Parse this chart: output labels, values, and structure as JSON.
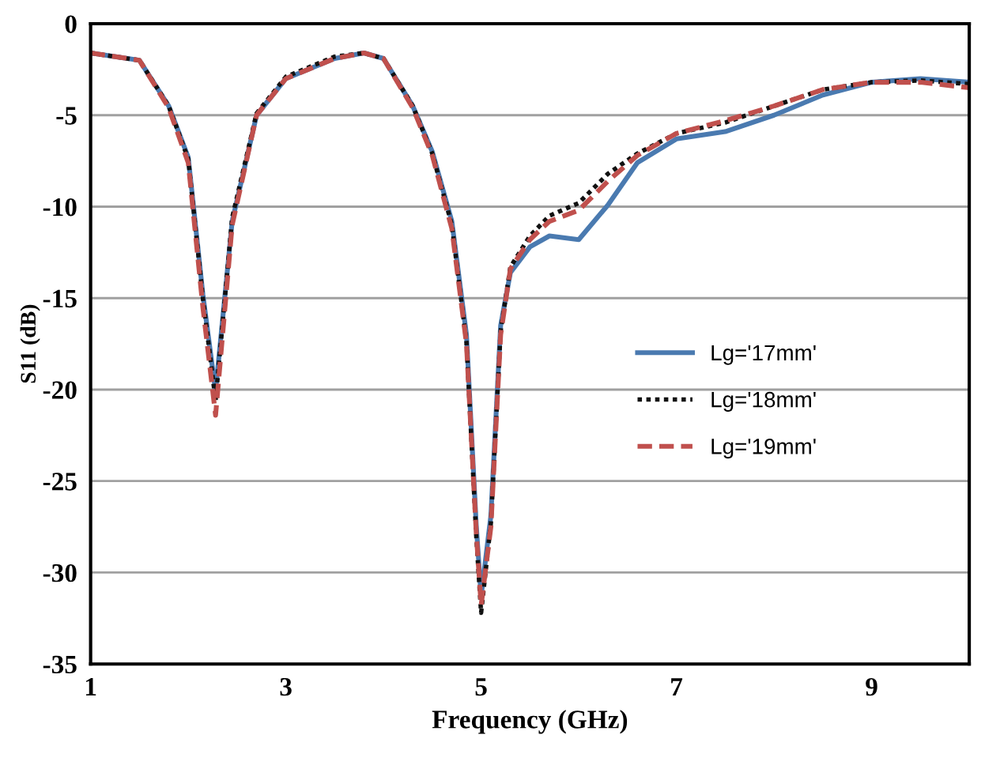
{
  "chart_data": {
    "type": "line",
    "xlabel": "Frequency (GHz)",
    "ylabel": "S11 (dB)",
    "x": [
      1,
      1.5,
      1.8,
      2.0,
      2.15,
      2.28,
      2.45,
      2.7,
      3,
      3.5,
      3.8,
      4.0,
      4.3,
      4.5,
      4.7,
      4.85,
      4.95,
      5.0,
      5.1,
      5.2,
      5.3,
      5.5,
      5.7,
      6.0,
      6.3,
      6.6,
      7,
      7.5,
      8,
      8.5,
      9,
      9.5,
      10
    ],
    "series": [
      {
        "name": "Lg='17mm'",
        "color": "#4a7ab0",
        "line_style": "solid",
        "values": [
          -1.6,
          -2.0,
          -4.5,
          -7.3,
          -14.8,
          -20.1,
          -10.8,
          -5.0,
          -3.0,
          -1.9,
          -1.6,
          -1.9,
          -4.5,
          -7.0,
          -10.8,
          -17.0,
          -27.4,
          -31.3,
          -26.9,
          -16.5,
          -13.6,
          -12.2,
          -11.6,
          -11.8,
          -9.9,
          -7.6,
          -6.3,
          -5.9,
          -5.0,
          -3.9,
          -3.2,
          -3.0,
          -3.2
        ]
      },
      {
        "name": "Lg='18mm'",
        "color": "#111111",
        "line_style": "dotted",
        "values": [
          -1.6,
          -2.0,
          -4.5,
          -7.4,
          -15.0,
          -20.6,
          -10.6,
          -4.9,
          -2.9,
          -1.8,
          -1.6,
          -1.9,
          -4.5,
          -7.1,
          -11.0,
          -17.4,
          -28.0,
          -32.2,
          -27.3,
          -16.8,
          -13.3,
          -11.6,
          -10.5,
          -9.8,
          -8.2,
          -7.1,
          -6.0,
          -5.4,
          -4.5,
          -3.6,
          -3.2,
          -3.1,
          -3.3
        ]
      },
      {
        "name": "Lg='19mm'",
        "color": "#c0504d",
        "line_style": "dashed",
        "values": [
          -1.6,
          -2.0,
          -4.6,
          -7.6,
          -15.5,
          -21.4,
          -11.0,
          -5.0,
          -3.0,
          -1.9,
          -1.6,
          -1.9,
          -4.6,
          -7.2,
          -11.2,
          -17.5,
          -27.8,
          -31.8,
          -27.5,
          -17.0,
          -13.4,
          -11.8,
          -10.8,
          -10.2,
          -8.6,
          -7.2,
          -6.0,
          -5.3,
          -4.5,
          -3.6,
          -3.2,
          -3.2,
          -3.5
        ]
      }
    ],
    "xlim": [
      1,
      10
    ],
    "xticks": [
      1,
      3,
      5,
      7,
      9
    ],
    "ylim": [
      -35,
      0
    ],
    "yticks": [
      0,
      -5,
      -10,
      -15,
      -20,
      -25,
      -30,
      -35
    ],
    "grid": "y",
    "legend": "right"
  }
}
